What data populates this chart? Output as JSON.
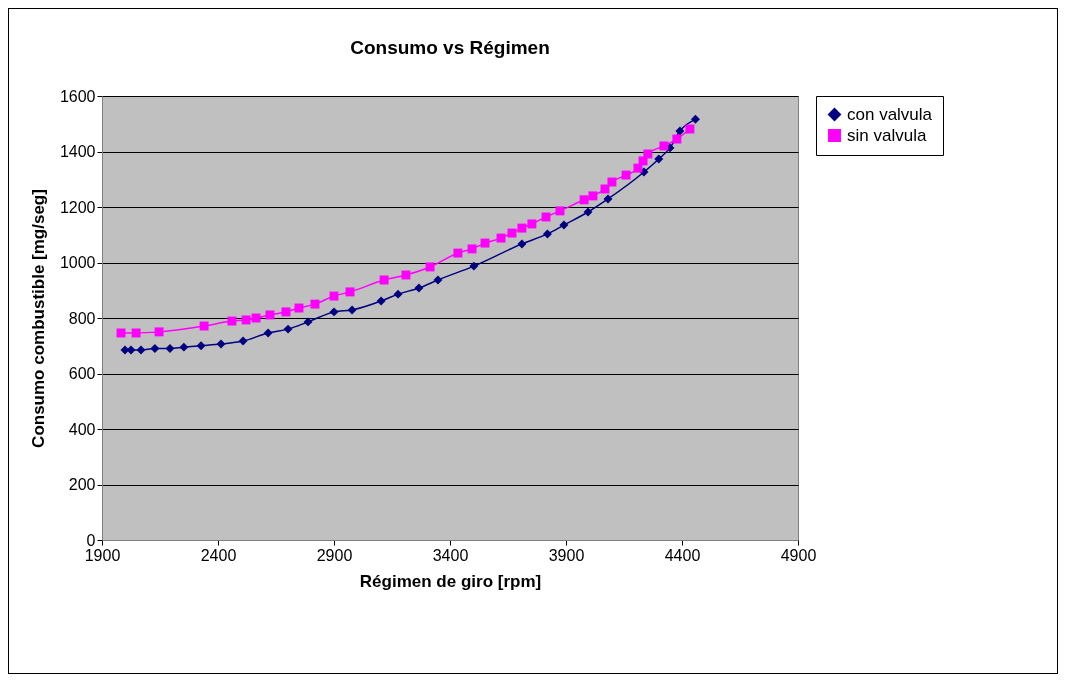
{
  "chart_data": {
    "type": "line",
    "title": "Consumo vs Régimen",
    "xlabel": "Régimen de giro [rpm]",
    "ylabel": "Consumo combustible [mg/seg]",
    "xlim": [
      1900,
      4900
    ],
    "xticks": [
      1900,
      2400,
      2900,
      3400,
      3900,
      4400,
      4900
    ],
    "ylim": [
      0,
      1600
    ],
    "yticks": [
      0,
      200,
      400,
      600,
      800,
      1000,
      1200,
      1400,
      1600
    ],
    "grid": "y",
    "legend": "right",
    "series": [
      {
        "name": "con valvula",
        "color": "#000080",
        "marker": "diamond",
        "x": [
          1999,
          2025,
          2068,
          2128,
          2193,
          2253,
          2327,
          2413,
          2508,
          2616,
          2702,
          2788,
          2900,
          2978,
          3103,
          3176,
          3266,
          3348,
          3503,
          3710,
          3820,
          3891,
          3995,
          4081,
          4236,
          4300,
          4348,
          4391,
          4458
        ],
        "values": [
          685,
          685,
          685,
          690,
          690,
          695,
          700,
          706,
          717,
          746,
          760,
          786,
          822,
          829,
          861,
          886,
          908,
          937,
          987,
          1067,
          1103,
          1135,
          1182,
          1229,
          1326,
          1373,
          1413,
          1474,
          1516
        ]
      },
      {
        "name": "sin valvula",
        "color": "#ff00ff",
        "marker": "square",
        "x": [
          1982,
          2047,
          2146,
          2340,
          2460,
          2521,
          2564,
          2624,
          2693,
          2749,
          2818,
          2900,
          2969,
          3116,
          3210,
          3314,
          3434,
          3495,
          3551,
          3620,
          3667,
          3710,
          3753,
          3814,
          3874,
          3978,
          4016,
          4068,
          4098,
          4159,
          4210,
          4232,
          4253,
          4322,
          4378,
          4434
        ],
        "values": [
          746,
          746,
          750,
          771,
          789,
          793,
          800,
          811,
          822,
          836,
          850,
          879,
          894,
          937,
          955,
          984,
          1034,
          1049,
          1070,
          1088,
          1106,
          1124,
          1139,
          1164,
          1186,
          1226,
          1240,
          1265,
          1290,
          1315,
          1340,
          1366,
          1391,
          1420,
          1445,
          1481
        ]
      }
    ]
  }
}
